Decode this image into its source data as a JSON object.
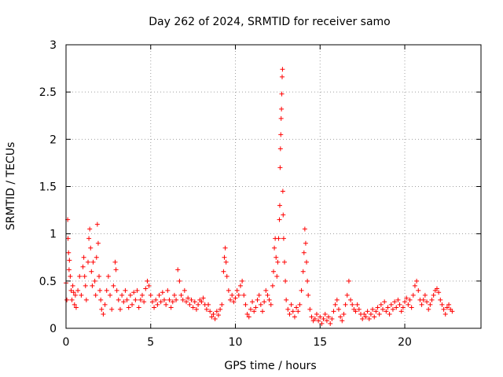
{
  "chart_data": {
    "type": "scatter",
    "title": "Day 262 of 2024, SRMTID for receiver samo",
    "xlabel": "GPS time / hours",
    "ylabel": "SRMTID / TECUs",
    "xlim": [
      0,
      24.5
    ],
    "ylim": [
      0,
      3
    ],
    "xticks": [
      "0",
      "5",
      "10",
      "15",
      "20"
    ],
    "xtick_values": [
      0,
      5,
      10,
      15,
      20
    ],
    "yticks": [
      "0",
      "0.5",
      "1",
      "1.5",
      "2",
      "2.5",
      "3"
    ],
    "ytick_values": [
      0,
      0.5,
      1,
      1.5,
      2,
      2.5,
      3
    ],
    "grid": true,
    "marker": "+",
    "color": "#ff0000",
    "series": [
      {
        "name": "samo",
        "points": [
          [
            0.0,
            0.48
          ],
          [
            0.05,
            0.3
          ],
          [
            0.1,
            1.15
          ],
          [
            0.12,
            0.95
          ],
          [
            0.15,
            0.8
          ],
          [
            0.18,
            0.62
          ],
          [
            0.2,
            0.72
          ],
          [
            0.25,
            0.55
          ],
          [
            0.3,
            0.4
          ],
          [
            0.35,
            0.3
          ],
          [
            0.4,
            0.45
          ],
          [
            0.45,
            0.38
          ],
          [
            0.5,
            0.25
          ],
          [
            0.55,
            0.35
          ],
          [
            0.6,
            0.22
          ],
          [
            0.7,
            0.4
          ],
          [
            0.8,
            0.55
          ],
          [
            0.9,
            0.35
          ],
          [
            1.0,
            0.65
          ],
          [
            1.05,
            0.75
          ],
          [
            1.1,
            0.55
          ],
          [
            1.15,
            0.45
          ],
          [
            1.2,
            0.3
          ],
          [
            1.3,
            0.7
          ],
          [
            1.35,
            0.95
          ],
          [
            1.4,
            1.05
          ],
          [
            1.45,
            0.85
          ],
          [
            1.5,
            0.6
          ],
          [
            1.55,
            0.45
          ],
          [
            1.6,
            0.7
          ],
          [
            1.7,
            0.5
          ],
          [
            1.75,
            0.35
          ],
          [
            1.8,
            0.75
          ],
          [
            1.85,
            1.1
          ],
          [
            1.9,
            0.9
          ],
          [
            1.95,
            0.55
          ],
          [
            2.0,
            0.4
          ],
          [
            2.05,
            0.3
          ],
          [
            2.1,
            0.2
          ],
          [
            2.2,
            0.15
          ],
          [
            2.3,
            0.25
          ],
          [
            2.4,
            0.4
          ],
          [
            2.5,
            0.55
          ],
          [
            2.6,
            0.35
          ],
          [
            2.7,
            0.2
          ],
          [
            2.8,
            0.45
          ],
          [
            2.9,
            0.7
          ],
          [
            2.95,
            0.62
          ],
          [
            3.0,
            0.4
          ],
          [
            3.1,
            0.3
          ],
          [
            3.2,
            0.2
          ],
          [
            3.3,
            0.35
          ],
          [
            3.4,
            0.28
          ],
          [
            3.5,
            0.4
          ],
          [
            3.6,
            0.3
          ],
          [
            3.7,
            0.22
          ],
          [
            3.8,
            0.35
          ],
          [
            3.9,
            0.25
          ],
          [
            4.0,
            0.38
          ],
          [
            4.1,
            0.3
          ],
          [
            4.2,
            0.4
          ],
          [
            4.3,
            0.22
          ],
          [
            4.4,
            0.3
          ],
          [
            4.5,
            0.35
          ],
          [
            4.6,
            0.28
          ],
          [
            4.7,
            0.42
          ],
          [
            4.8,
            0.5
          ],
          [
            4.9,
            0.45
          ],
          [
            5.0,
            0.35
          ],
          [
            5.1,
            0.28
          ],
          [
            5.2,
            0.22
          ],
          [
            5.3,
            0.3
          ],
          [
            5.4,
            0.25
          ],
          [
            5.5,
            0.35
          ],
          [
            5.6,
            0.28
          ],
          [
            5.7,
            0.38
          ],
          [
            5.8,
            0.3
          ],
          [
            5.9,
            0.25
          ],
          [
            6.0,
            0.4
          ],
          [
            6.1,
            0.3
          ],
          [
            6.2,
            0.22
          ],
          [
            6.3,
            0.28
          ],
          [
            6.4,
            0.35
          ],
          [
            6.5,
            0.3
          ],
          [
            6.6,
            0.62
          ],
          [
            6.7,
            0.5
          ],
          [
            6.8,
            0.35
          ],
          [
            6.9,
            0.3
          ],
          [
            7.0,
            0.4
          ],
          [
            7.1,
            0.28
          ],
          [
            7.2,
            0.32
          ],
          [
            7.3,
            0.25
          ],
          [
            7.4,
            0.3
          ],
          [
            7.5,
            0.22
          ],
          [
            7.6,
            0.28
          ],
          [
            7.7,
            0.2
          ],
          [
            7.8,
            0.25
          ],
          [
            7.9,
            0.3
          ],
          [
            8.0,
            0.28
          ],
          [
            8.1,
            0.32
          ],
          [
            8.2,
            0.25
          ],
          [
            8.3,
            0.2
          ],
          [
            8.4,
            0.25
          ],
          [
            8.5,
            0.18
          ],
          [
            8.6,
            0.12
          ],
          [
            8.7,
            0.15
          ],
          [
            8.8,
            0.1
          ],
          [
            8.9,
            0.18
          ],
          [
            9.0,
            0.14
          ],
          [
            9.1,
            0.2
          ],
          [
            9.2,
            0.25
          ],
          [
            9.3,
            0.6
          ],
          [
            9.35,
            0.75
          ],
          [
            9.4,
            0.85
          ],
          [
            9.45,
            0.7
          ],
          [
            9.5,
            0.55
          ],
          [
            9.6,
            0.4
          ],
          [
            9.7,
            0.3
          ],
          [
            9.8,
            0.35
          ],
          [
            9.9,
            0.28
          ],
          [
            10.0,
            0.32
          ],
          [
            10.1,
            0.4
          ],
          [
            10.2,
            0.35
          ],
          [
            10.3,
            0.45
          ],
          [
            10.4,
            0.5
          ],
          [
            10.5,
            0.35
          ],
          [
            10.6,
            0.25
          ],
          [
            10.7,
            0.15
          ],
          [
            10.8,
            0.12
          ],
          [
            10.9,
            0.2
          ],
          [
            11.0,
            0.28
          ],
          [
            11.1,
            0.18
          ],
          [
            11.2,
            0.22
          ],
          [
            11.3,
            0.3
          ],
          [
            11.4,
            0.35
          ],
          [
            11.5,
            0.25
          ],
          [
            11.6,
            0.18
          ],
          [
            11.7,
            0.28
          ],
          [
            11.8,
            0.4
          ],
          [
            11.9,
            0.35
          ],
          [
            12.0,
            0.3
          ],
          [
            12.1,
            0.25
          ],
          [
            12.2,
            0.45
          ],
          [
            12.25,
            0.6
          ],
          [
            12.3,
            0.85
          ],
          [
            12.35,
            0.95
          ],
          [
            12.4,
            0.75
          ],
          [
            12.45,
            0.55
          ],
          [
            12.5,
            0.7
          ],
          [
            12.55,
            0.95
          ],
          [
            12.6,
            1.15
          ],
          [
            12.62,
            1.3
          ],
          [
            12.64,
            1.7
          ],
          [
            12.66,
            1.9
          ],
          [
            12.68,
            2.05
          ],
          [
            12.7,
            2.22
          ],
          [
            12.72,
            2.32
          ],
          [
            12.74,
            2.48
          ],
          [
            12.76,
            2.66
          ],
          [
            12.78,
            2.74
          ],
          [
            12.8,
            1.45
          ],
          [
            12.82,
            1.2
          ],
          [
            12.85,
            0.95
          ],
          [
            12.9,
            0.7
          ],
          [
            12.95,
            0.5
          ],
          [
            13.0,
            0.3
          ],
          [
            13.1,
            0.2
          ],
          [
            13.2,
            0.15
          ],
          [
            13.3,
            0.25
          ],
          [
            13.4,
            0.18
          ],
          [
            13.5,
            0.12
          ],
          [
            13.6,
            0.22
          ],
          [
            13.7,
            0.18
          ],
          [
            13.8,
            0.25
          ],
          [
            13.9,
            0.4
          ],
          [
            14.0,
            0.6
          ],
          [
            14.05,
            0.8
          ],
          [
            14.1,
            1.05
          ],
          [
            14.15,
            0.9
          ],
          [
            14.2,
            0.7
          ],
          [
            14.25,
            0.5
          ],
          [
            14.3,
            0.35
          ],
          [
            14.4,
            0.2
          ],
          [
            14.5,
            0.12
          ],
          [
            14.6,
            0.08
          ],
          [
            14.7,
            0.1
          ],
          [
            14.8,
            0.15
          ],
          [
            14.9,
            0.08
          ],
          [
            15.0,
            0.12
          ],
          [
            15.1,
            0.05
          ],
          [
            15.2,
            0.1
          ],
          [
            15.3,
            0.15
          ],
          [
            15.4,
            0.08
          ],
          [
            15.5,
            0.12
          ],
          [
            15.6,
            0.05
          ],
          [
            15.7,
            0.1
          ],
          [
            15.8,
            0.18
          ],
          [
            15.9,
            0.25
          ],
          [
            16.0,
            0.3
          ],
          [
            16.1,
            0.2
          ],
          [
            16.2,
            0.12
          ],
          [
            16.3,
            0.08
          ],
          [
            16.4,
            0.15
          ],
          [
            16.5,
            0.25
          ],
          [
            16.6,
            0.35
          ],
          [
            16.7,
            0.5
          ],
          [
            16.8,
            0.3
          ],
          [
            16.9,
            0.25
          ],
          [
            17.0,
            0.2
          ],
          [
            17.1,
            0.18
          ],
          [
            17.2,
            0.25
          ],
          [
            17.3,
            0.2
          ],
          [
            17.4,
            0.15
          ],
          [
            17.5,
            0.1
          ],
          [
            17.6,
            0.15
          ],
          [
            17.7,
            0.12
          ],
          [
            17.8,
            0.18
          ],
          [
            17.9,
            0.1
          ],
          [
            18.0,
            0.15
          ],
          [
            18.1,
            0.2
          ],
          [
            18.2,
            0.12
          ],
          [
            18.3,
            0.18
          ],
          [
            18.4,
            0.22
          ],
          [
            18.5,
            0.15
          ],
          [
            18.6,
            0.25
          ],
          [
            18.7,
            0.2
          ],
          [
            18.8,
            0.28
          ],
          [
            18.9,
            0.18
          ],
          [
            19.0,
            0.22
          ],
          [
            19.1,
            0.15
          ],
          [
            19.2,
            0.25
          ],
          [
            19.3,
            0.2
          ],
          [
            19.4,
            0.28
          ],
          [
            19.5,
            0.22
          ],
          [
            19.6,
            0.3
          ],
          [
            19.7,
            0.25
          ],
          [
            19.8,
            0.18
          ],
          [
            19.9,
            0.22
          ],
          [
            20.0,
            0.28
          ],
          [
            20.1,
            0.32
          ],
          [
            20.2,
            0.25
          ],
          [
            20.3,
            0.3
          ],
          [
            20.4,
            0.22
          ],
          [
            20.5,
            0.35
          ],
          [
            20.6,
            0.45
          ],
          [
            20.7,
            0.5
          ],
          [
            20.8,
            0.4
          ],
          [
            20.9,
            0.3
          ],
          [
            21.0,
            0.25
          ],
          [
            21.1,
            0.3
          ],
          [
            21.2,
            0.35
          ],
          [
            21.3,
            0.28
          ],
          [
            21.4,
            0.2
          ],
          [
            21.5,
            0.25
          ],
          [
            21.6,
            0.3
          ],
          [
            21.7,
            0.35
          ],
          [
            21.8,
            0.4
          ],
          [
            21.9,
            0.42
          ],
          [
            22.0,
            0.38
          ],
          [
            22.1,
            0.3
          ],
          [
            22.2,
            0.25
          ],
          [
            22.3,
            0.2
          ],
          [
            22.4,
            0.15
          ],
          [
            22.5,
            0.22
          ],
          [
            22.6,
            0.25
          ],
          [
            22.7,
            0.2
          ],
          [
            22.8,
            0.18
          ]
        ]
      }
    ]
  }
}
